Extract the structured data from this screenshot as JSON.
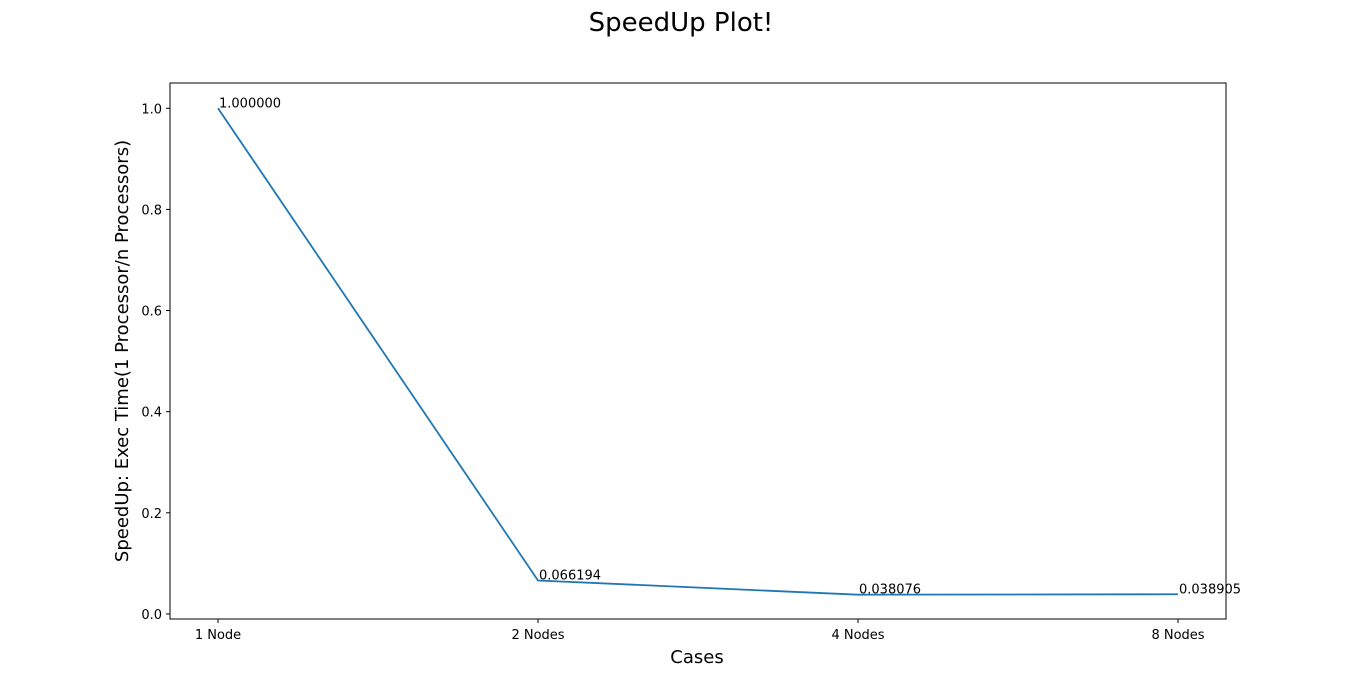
{
  "chart_data": {
    "type": "line",
    "title": "SpeedUp Plot!",
    "xlabel": "Cases",
    "ylabel": "SpeedUp: Exec Time(1 Processor/n Processors)",
    "categories": [
      "1 Node",
      "2 Nodes",
      "4 Nodes",
      "8 Nodes"
    ],
    "series": [
      {
        "values": [
          1.0,
          0.066194,
          0.038076,
          0.038905
        ],
        "labels": [
          "1.000000",
          "0.066194",
          "0.038076",
          "0.038905"
        ],
        "color": "#1f77b4"
      }
    ],
    "ylim": [
      -0.01,
      1.05
    ],
    "yticks": [
      0.0,
      0.2,
      0.4,
      0.6,
      0.8,
      1.0
    ],
    "ytick_labels": [
      "0.0",
      "0.2",
      "0.4",
      "0.6",
      "0.8",
      "1.0"
    ],
    "grid": false
  }
}
